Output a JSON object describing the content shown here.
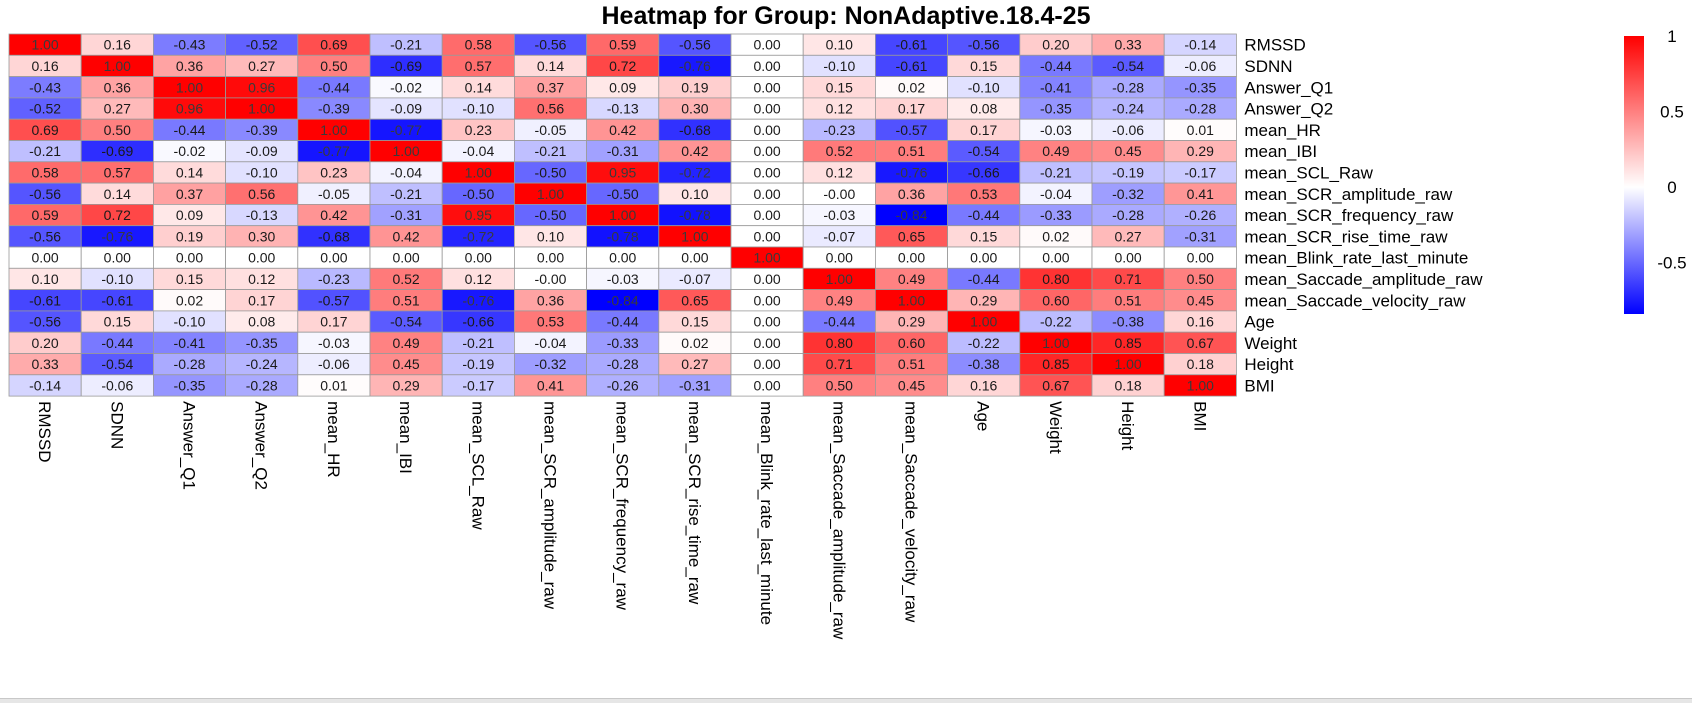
{
  "chart_data": {
    "type": "heatmap",
    "title": "Heatmap for Group: NonAdaptive.18.4-25",
    "variables": [
      "RMSSD",
      "SDNN",
      "Answer_Q1",
      "Answer_Q2",
      "mean_HR",
      "mean_IBI",
      "mean_SCL_Raw",
      "mean_SCR_amplitude_raw",
      "mean_SCR_frequency_raw",
      "mean_SCR_rise_time_raw",
      "mean_Blink_rate_last_minute",
      "mean_Saccade_amplitude_raw",
      "mean_Saccade_velocity_raw",
      "Age",
      "Weight",
      "Height",
      "BMI"
    ],
    "matrix": [
      [
        1.0,
        0.16,
        -0.43,
        -0.52,
        0.69,
        -0.21,
        0.58,
        -0.56,
        0.59,
        -0.56,
        0.0,
        0.1,
        -0.61,
        -0.56,
        0.2,
        0.33,
        -0.14
      ],
      [
        0.16,
        1.0,
        0.36,
        0.27,
        0.5,
        -0.69,
        0.57,
        0.14,
        0.72,
        -0.76,
        0.0,
        -0.1,
        -0.61,
        0.15,
        -0.44,
        -0.54,
        -0.06
      ],
      [
        -0.43,
        0.36,
        1.0,
        0.96,
        -0.44,
        -0.02,
        0.14,
        0.37,
        0.09,
        0.19,
        0.0,
        0.15,
        0.02,
        -0.1,
        -0.41,
        -0.28,
        -0.35
      ],
      [
        -0.52,
        0.27,
        0.96,
        1.0,
        -0.39,
        -0.09,
        -0.1,
        0.56,
        -0.13,
        0.3,
        0.0,
        0.12,
        0.17,
        0.08,
        -0.35,
        -0.24,
        -0.28
      ],
      [
        0.69,
        0.5,
        -0.44,
        -0.39,
        1.0,
        -0.77,
        0.23,
        -0.05,
        0.42,
        -0.68,
        0.0,
        -0.23,
        -0.57,
        0.17,
        -0.03,
        -0.06,
        0.01
      ],
      [
        -0.21,
        -0.69,
        -0.02,
        -0.09,
        -0.77,
        1.0,
        -0.04,
        -0.21,
        -0.31,
        0.42,
        0.0,
        0.52,
        0.51,
        -0.54,
        0.49,
        0.45,
        0.29
      ],
      [
        0.58,
        0.57,
        0.14,
        -0.1,
        0.23,
        -0.04,
        1.0,
        -0.5,
        0.95,
        -0.72,
        0.0,
        0.12,
        -0.76,
        -0.66,
        -0.21,
        -0.19,
        -0.17
      ],
      [
        -0.56,
        0.14,
        0.37,
        0.56,
        -0.05,
        -0.21,
        -0.5,
        1.0,
        -0.5,
        0.1,
        0.0,
        -0.0,
        0.36,
        0.53,
        -0.04,
        -0.32,
        0.41
      ],
      [
        0.59,
        0.72,
        0.09,
        -0.13,
        0.42,
        -0.31,
        0.95,
        -0.5,
        1.0,
        -0.78,
        0.0,
        -0.03,
        -0.84,
        -0.44,
        -0.33,
        -0.28,
        -0.26
      ],
      [
        -0.56,
        -0.76,
        0.19,
        0.3,
        -0.68,
        0.42,
        -0.72,
        0.1,
        -0.78,
        1.0,
        0.0,
        -0.07,
        0.65,
        0.15,
        0.02,
        0.27,
        -0.31
      ],
      [
        0.0,
        0.0,
        0.0,
        0.0,
        0.0,
        0.0,
        0.0,
        0.0,
        0.0,
        0.0,
        1.0,
        0.0,
        0.0,
        0.0,
        0.0,
        0.0,
        0.0
      ],
      [
        0.1,
        -0.1,
        0.15,
        0.12,
        -0.23,
        0.52,
        0.12,
        -0.0,
        -0.03,
        -0.07,
        0.0,
        1.0,
        0.49,
        -0.44,
        0.8,
        0.71,
        0.5
      ],
      [
        -0.61,
        -0.61,
        0.02,
        0.17,
        -0.57,
        0.51,
        -0.76,
        0.36,
        -0.84,
        0.65,
        0.0,
        0.49,
        1.0,
        0.29,
        0.6,
        0.51,
        0.45
      ],
      [
        -0.56,
        0.15,
        -0.1,
        0.08,
        0.17,
        -0.54,
        -0.66,
        0.53,
        -0.44,
        0.15,
        0.0,
        -0.44,
        0.29,
        1.0,
        -0.22,
        -0.38,
        0.16
      ],
      [
        0.2,
        -0.44,
        -0.41,
        -0.35,
        -0.03,
        0.49,
        -0.21,
        -0.04,
        -0.33,
        0.02,
        0.0,
        0.8,
        0.6,
        -0.22,
        1.0,
        0.85,
        0.67
      ],
      [
        0.33,
        -0.54,
        -0.28,
        -0.24,
        -0.06,
        0.45,
        -0.19,
        -0.32,
        -0.28,
        0.27,
        0.0,
        0.71,
        0.51,
        -0.38,
        0.85,
        1.0,
        0.18
      ],
      [
        -0.14,
        -0.06,
        -0.35,
        -0.28,
        0.01,
        0.29,
        -0.17,
        0.41,
        -0.26,
        -0.31,
        0.0,
        0.5,
        0.45,
        0.16,
        0.67,
        0.18,
        1.0
      ]
    ],
    "value_format": "2 decimals",
    "color_scale": {
      "negative": "#0000ff",
      "zero": "#ffffff",
      "positive": "#ff0000",
      "range": [
        -0.84,
        1.0
      ]
    },
    "legend": {
      "placement": "right",
      "ticks": [
        "1",
        "0.5",
        "0",
        "-0.5"
      ],
      "tick_values": [
        1,
        0.5,
        0,
        -0.5
      ]
    },
    "cell_border_color": "#999999",
    "row_labels_side": "right",
    "col_labels_side": "bottom, rotated 90°"
  }
}
